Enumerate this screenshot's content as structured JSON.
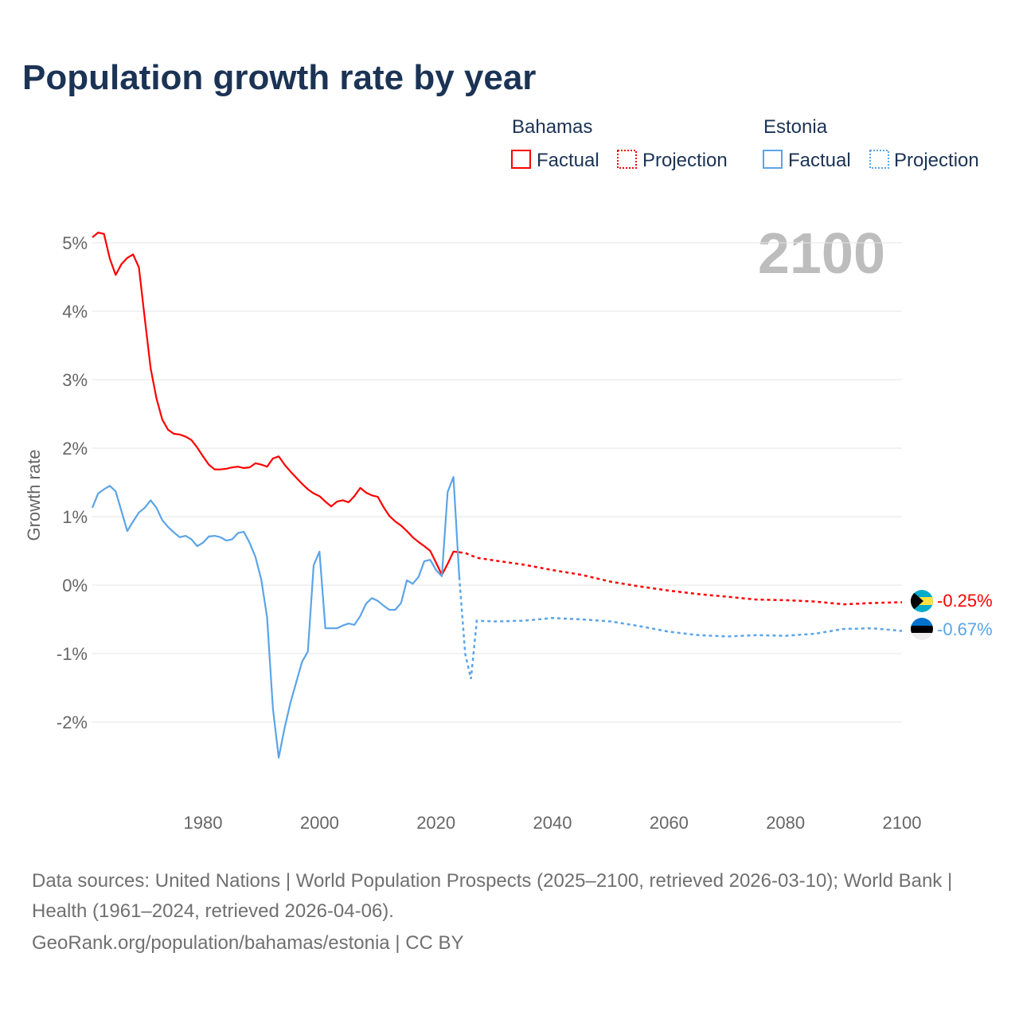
{
  "title": "Population growth rate by year",
  "year_label": "2100",
  "legend": {
    "groups": [
      {
        "country": "Bahamas",
        "factual": "Factual",
        "projection": "Projection",
        "color": "#ff0000"
      },
      {
        "country": "Estonia",
        "factual": "Factual",
        "projection": "Projection",
        "color": "#5ba4e8"
      }
    ]
  },
  "footer": {
    "line1": "Data sources: United Nations | World Population Prospects (2025–2100, retrieved 2026-03-10); World Bank | Health (1961–2024, retrieved 2026-04-06).",
    "line2": "GeoRank.org/population/bahamas/estonia | CC BY"
  },
  "chart_data": {
    "type": "line",
    "title": "Population growth rate by year",
    "xlabel": "",
    "ylabel": "Growth rate",
    "xlim": [
      1961,
      2100
    ],
    "ylim": [
      -2.9,
      5.2
    ],
    "x_ticks": [
      1980,
      2000,
      2020,
      2040,
      2060,
      2080,
      2100
    ],
    "y_ticks": [
      5,
      4,
      3,
      2,
      1,
      0,
      -1,
      -2
    ],
    "y_tick_labels": [
      "5%",
      "4%",
      "3%",
      "2%",
      "1%",
      "0%",
      "-1%",
      "-2%"
    ],
    "grid": true,
    "legend_position": "top-right",
    "series": [
      {
        "name": "Bahamas",
        "color": "#ff0000",
        "end_label": "-0.25%",
        "factual": {
          "x": [
            1961,
            1962,
            1963,
            1964,
            1965,
            1966,
            1967,
            1968,
            1969,
            1970,
            1971,
            1972,
            1973,
            1974,
            1975,
            1976,
            1977,
            1978,
            1979,
            1980,
            1981,
            1982,
            1983,
            1984,
            1985,
            1986,
            1987,
            1988,
            1989,
            1990,
            1991,
            1992,
            1993,
            1994,
            1995,
            1996,
            1997,
            1998,
            1999,
            2000,
            2001,
            2002,
            2003,
            2004,
            2005,
            2006,
            2007,
            2008,
            2009,
            2010,
            2011,
            2012,
            2013,
            2014,
            2015,
            2016,
            2017,
            2018,
            2019,
            2020,
            2021,
            2022,
            2023,
            2024
          ],
          "y": [
            5.08,
            5.15,
            5.13,
            4.77,
            4.53,
            4.69,
            4.78,
            4.83,
            4.64,
            3.9,
            3.17,
            2.73,
            2.42,
            2.27,
            2.21,
            2.2,
            2.17,
            2.12,
            2.01,
            1.88,
            1.76,
            1.69,
            1.69,
            1.7,
            1.72,
            1.73,
            1.71,
            1.72,
            1.78,
            1.76,
            1.73,
            1.85,
            1.88,
            1.76,
            1.66,
            1.57,
            1.48,
            1.4,
            1.34,
            1.3,
            1.22,
            1.15,
            1.22,
            1.24,
            1.21,
            1.3,
            1.42,
            1.35,
            1.31,
            1.29,
            1.14,
            1.01,
            0.93,
            0.87,
            0.79,
            0.7,
            0.63,
            0.57,
            0.5,
            0.33,
            0.15,
            0.31,
            0.49,
            0.48
          ]
        },
        "projection": {
          "x": [
            2024,
            2025,
            2027,
            2030,
            2035,
            2040,
            2045,
            2050,
            2055,
            2060,
            2065,
            2070,
            2075,
            2080,
            2085,
            2090,
            2095,
            2100
          ],
          "y": [
            0.48,
            0.47,
            0.4,
            0.36,
            0.3,
            0.22,
            0.15,
            0.05,
            -0.02,
            -0.08,
            -0.13,
            -0.17,
            -0.21,
            -0.22,
            -0.24,
            -0.28,
            -0.26,
            -0.25
          ]
        }
      },
      {
        "name": "Estonia",
        "color": "#5ba4e8",
        "end_label": "-0.67%",
        "factual": {
          "x": [
            1961,
            1962,
            1963,
            1964,
            1965,
            1966,
            1967,
            1968,
            1969,
            1970,
            1971,
            1972,
            1973,
            1974,
            1975,
            1976,
            1977,
            1978,
            1979,
            1980,
            1981,
            1982,
            1983,
            1984,
            1985,
            1986,
            1987,
            1988,
            1989,
            1990,
            1991,
            1992,
            1993,
            1994,
            1995,
            1996,
            1997,
            1998,
            1999,
            2000,
            2001,
            2002,
            2003,
            2004,
            2005,
            2006,
            2007,
            2008,
            2009,
            2010,
            2011,
            2012,
            2013,
            2014,
            2015,
            2016,
            2017,
            2018,
            2019,
            2020,
            2021,
            2022,
            2023,
            2024
          ],
          "y": [
            1.13,
            1.34,
            1.4,
            1.45,
            1.37,
            1.08,
            0.79,
            0.93,
            1.06,
            1.13,
            1.24,
            1.13,
            0.95,
            0.85,
            0.77,
            0.7,
            0.72,
            0.67,
            0.57,
            0.62,
            0.71,
            0.72,
            0.7,
            0.65,
            0.67,
            0.76,
            0.78,
            0.62,
            0.41,
            0.08,
            -0.47,
            -1.8,
            -2.52,
            -2.09,
            -1.72,
            -1.42,
            -1.12,
            -0.97,
            0.29,
            0.49,
            -0.63,
            -0.63,
            -0.63,
            -0.59,
            -0.56,
            -0.58,
            -0.45,
            -0.27,
            -0.19,
            -0.23,
            -0.3,
            -0.36,
            -0.36,
            -0.26,
            0.07,
            0.02,
            0.12,
            0.35,
            0.37,
            0.22,
            0.13,
            1.36,
            1.58,
            0.12
          ]
        },
        "projection": {
          "x": [
            2024,
            2025,
            2026,
            2027,
            2030,
            2035,
            2040,
            2045,
            2050,
            2055,
            2060,
            2065,
            2070,
            2075,
            2080,
            2085,
            2090,
            2095,
            2100
          ],
          "y": [
            0.12,
            -1.0,
            -1.37,
            -0.52,
            -0.53,
            -0.52,
            -0.48,
            -0.5,
            -0.53,
            -0.6,
            -0.68,
            -0.73,
            -0.75,
            -0.73,
            -0.74,
            -0.71,
            -0.64,
            -0.63,
            -0.67
          ]
        }
      }
    ]
  }
}
